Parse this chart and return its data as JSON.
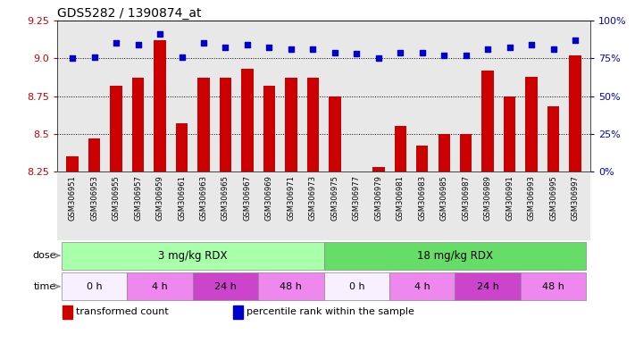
{
  "title": "GDS5282 / 1390874_at",
  "samples": [
    "GSM306951",
    "GSM306953",
    "GSM306955",
    "GSM306957",
    "GSM306959",
    "GSM306961",
    "GSM306963",
    "GSM306965",
    "GSM306967",
    "GSM306969",
    "GSM306971",
    "GSM306973",
    "GSM306975",
    "GSM306977",
    "GSM306979",
    "GSM306981",
    "GSM306983",
    "GSM306985",
    "GSM306987",
    "GSM306989",
    "GSM306991",
    "GSM306993",
    "GSM306995",
    "GSM306997"
  ],
  "transformed_count": [
    8.35,
    8.47,
    8.82,
    8.87,
    9.12,
    8.57,
    8.87,
    8.87,
    8.93,
    8.82,
    8.87,
    8.87,
    8.75,
    8.25,
    8.28,
    8.55,
    8.42,
    8.5,
    8.5,
    8.92,
    8.75,
    8.88,
    8.68,
    9.02
  ],
  "percentile_rank": [
    75,
    76,
    85,
    84,
    91,
    76,
    85,
    82,
    84,
    82,
    81,
    81,
    79,
    78,
    75,
    79,
    79,
    77,
    77,
    81,
    82,
    84,
    81,
    87
  ],
  "ylim_left": [
    8.25,
    9.25
  ],
  "ylim_right": [
    0,
    100
  ],
  "bar_color": "#cc0000",
  "dot_color": "#0000cc",
  "bg_color": "#e8e8e8",
  "dose_colors": [
    "#aaffaa",
    "#66dd66"
  ],
  "time_colors_0h": "#f8f0ff",
  "time_colors_4h": "#ee88ee",
  "time_colors_24h": "#cc44cc",
  "time_colors_48h": "#ee88ee",
  "dose_labels": [
    "3 mg/kg RDX",
    "18 mg/kg RDX"
  ],
  "time_labels": [
    "0 h",
    "4 h",
    "24 h",
    "48 h",
    "0 h",
    "4 h",
    "24 h",
    "48 h"
  ],
  "legend_items": [
    "transformed count",
    "percentile rank within the sample"
  ],
  "legend_colors": [
    "#cc0000",
    "#0000cc"
  ],
  "yticks_left": [
    8.25,
    8.5,
    8.75,
    9.0,
    9.25
  ],
  "yticks_right": [
    0,
    25,
    50,
    75,
    100
  ],
  "ytick_right_labels": [
    "0%",
    "25%",
    "50%",
    "75%",
    "100%"
  ]
}
